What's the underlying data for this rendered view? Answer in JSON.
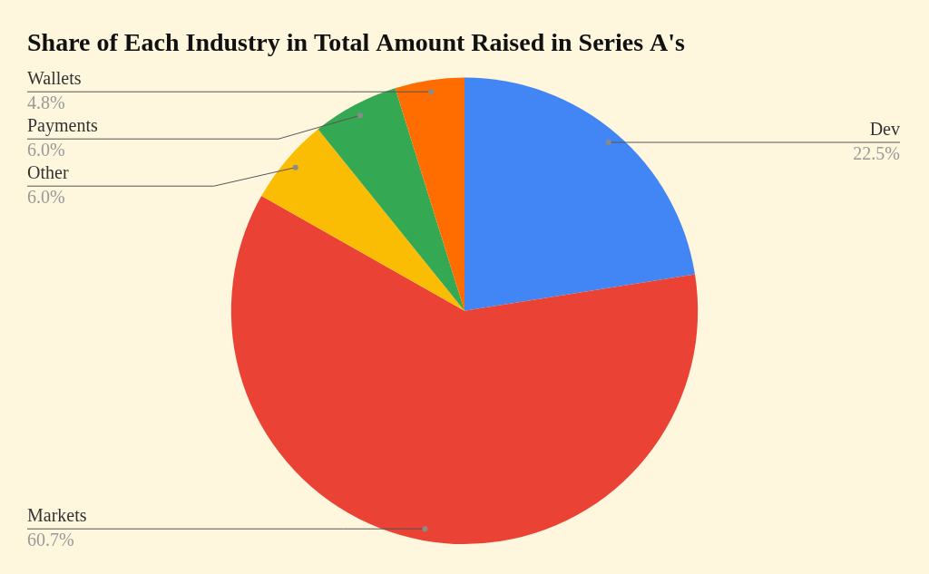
{
  "chart_data": {
    "type": "pie",
    "title": "Share of Each Industry in Total Amount Raised in Series A's",
    "categories": [
      "Dev",
      "Markets",
      "Other",
      "Payments",
      "Wallets"
    ],
    "values": [
      22.5,
      60.7,
      6.0,
      6.0,
      4.8
    ],
    "value_labels": [
      "22.5%",
      "60.7%",
      "6.0%",
      "6.0%",
      "4.8%"
    ],
    "colors": [
      "#4285f4",
      "#ea4335",
      "#fbbc04",
      "#34a853",
      "#ff6d01"
    ],
    "data_labels": true
  }
}
